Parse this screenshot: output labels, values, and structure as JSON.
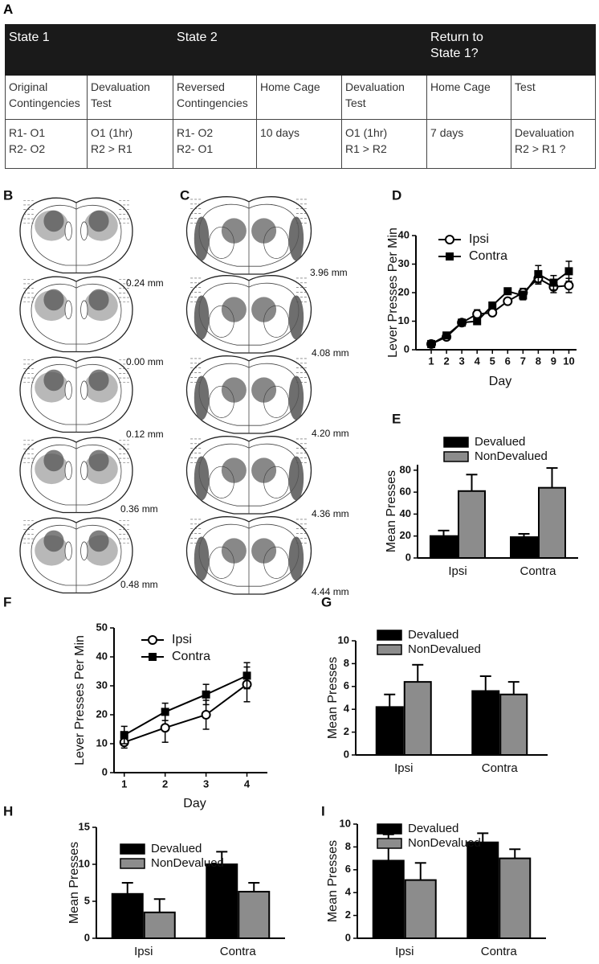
{
  "table": {
    "label": "A",
    "header": [
      "State 1",
      "State 2",
      "Return to State 1?"
    ],
    "rows": [
      [
        "Original Contingencies",
        "Devaluation Test",
        "Reversed Contingencies",
        "Home Cage",
        "Devaluation Test",
        "Home Cage",
        "Test"
      ],
      [
        [
          "R1- O1",
          "R2- O2"
        ],
        [
          "O1 (1hr)",
          "R2 > R1"
        ],
        [
          "R1- O2",
          "R2- O1"
        ],
        [
          "10 days"
        ],
        [
          "O1 (1hr)",
          "R1 > R2"
        ],
        [
          "7 days"
        ],
        [
          "Devaluation",
          "R2 > R1 ?"
        ]
      ]
    ]
  },
  "atlas": {
    "B": {
      "label": "B",
      "sections": [
        "0.24 mm",
        "0.00 mm",
        "0.12 mm",
        "0.36 mm",
        "0.48 mm"
      ]
    },
    "C": {
      "label": "C",
      "sections": [
        "3.96 mm",
        "4.08 mm",
        "4.20 mm",
        "4.36 mm",
        "4.44 mm"
      ]
    }
  },
  "chart_data": [
    {
      "type": "line",
      "label": "D",
      "ylabel": "Lever Presses Per Min",
      "xlabel": "Day",
      "x": [
        1,
        2,
        3,
        4,
        5,
        6,
        7,
        8,
        9,
        10
      ],
      "xlim": [
        0,
        10.5
      ],
      "xticks": [
        1,
        2,
        3,
        4,
        5,
        6,
        7,
        8,
        9,
        10
      ],
      "ylim": [
        0,
        40
      ],
      "yticks": [
        0,
        10,
        20,
        30,
        40
      ],
      "series": [
        {
          "name": "Ipsi",
          "color": "#000000",
          "marker": "circle",
          "values": [
            2,
            4.5,
            9.5,
            12.5,
            13,
            17,
            20,
            25,
            22,
            22.5
          ],
          "errors": [
            0.5,
            0.5,
            0.7,
            1.5,
            1,
            1,
            1.5,
            2,
            2,
            2.5
          ]
        },
        {
          "name": "Contra",
          "color": "#000000",
          "marker": "square",
          "values": [
            2,
            5,
            9.5,
            10,
            15.5,
            20.5,
            19,
            26.5,
            23.5,
            27.5
          ],
          "errors": [
            0.5,
            0.5,
            0.7,
            1,
            1,
            1,
            1.5,
            3,
            2.5,
            3.5
          ]
        }
      ]
    },
    {
      "type": "bar",
      "label": "E",
      "ylabel": "Mean Presses",
      "categories": [
        "Ipsi",
        "Contra"
      ],
      "ylim": [
        0,
        85
      ],
      "yticks": [
        0,
        20,
        40,
        60,
        80
      ],
      "series": [
        {
          "name": "Devalued",
          "color": "#000000",
          "values": [
            20,
            19
          ],
          "errors": [
            5,
            3
          ]
        },
        {
          "name": "NonDevalued",
          "color": "#8c8c8c",
          "values": [
            61,
            64
          ],
          "errors": [
            15,
            18
          ]
        }
      ]
    },
    {
      "type": "line",
      "label": "F",
      "ylabel": "Lever Presses Per Min",
      "xlabel": "Day",
      "x": [
        1,
        2,
        3,
        4
      ],
      "xlim": [
        0.75,
        4.5
      ],
      "xticks": [
        1,
        2,
        3,
        4
      ],
      "ylim": [
        0,
        50
      ],
      "yticks": [
        0,
        10,
        20,
        30,
        40,
        50
      ],
      "series": [
        {
          "name": "Ipsi",
          "color": "#000000",
          "marker": "circle",
          "values": [
            10.5,
            15.5,
            20,
            30.5
          ],
          "errors": [
            2,
            5,
            5,
            6
          ]
        },
        {
          "name": "Contra",
          "color": "#000000",
          "marker": "square",
          "values": [
            13,
            21,
            27,
            33.5
          ],
          "errors": [
            3,
            3,
            3.5,
            4.5
          ]
        }
      ]
    },
    {
      "type": "bar",
      "label": "G",
      "ylabel": "Mean Presses",
      "categories": [
        "Ipsi",
        "Contra"
      ],
      "ylim": [
        0,
        10
      ],
      "yticks": [
        0,
        2,
        4,
        6,
        8,
        10
      ],
      "series": [
        {
          "name": "Devalued",
          "color": "#000000",
          "values": [
            4.2,
            5.6
          ],
          "errors": [
            1.1,
            1.3
          ]
        },
        {
          "name": "NonDevalued",
          "color": "#8c8c8c",
          "values": [
            6.4,
            5.3
          ],
          "errors": [
            1.5,
            1.1
          ]
        }
      ]
    },
    {
      "type": "bar",
      "label": "H",
      "ylabel": "Mean Presses",
      "categories": [
        "Ipsi",
        "Contra"
      ],
      "ylim": [
        0,
        15
      ],
      "yticks": [
        0,
        5,
        10,
        15
      ],
      "series": [
        {
          "name": "Devalued",
          "color": "#000000",
          "values": [
            6,
            10
          ],
          "errors": [
            1.5,
            1.7
          ]
        },
        {
          "name": "NonDevalued",
          "color": "#8c8c8c",
          "values": [
            3.5,
            6.3
          ],
          "errors": [
            1.8,
            1.2
          ]
        }
      ]
    },
    {
      "type": "bar",
      "label": "I",
      "ylabel": "Mean Presses",
      "categories": [
        "Ipsi",
        "Contra"
      ],
      "ylim": [
        0,
        10
      ],
      "yticks": [
        0,
        2,
        4,
        6,
        8,
        10
      ],
      "series": [
        {
          "name": "Devalued",
          "color": "#000000",
          "values": [
            6.8,
            8.4
          ],
          "errors": [
            2.3,
            0.8
          ]
        },
        {
          "name": "NonDevalued",
          "color": "#8c8c8c",
          "values": [
            5.1,
            7
          ],
          "errors": [
            1.5,
            0.8
          ]
        }
      ]
    }
  ]
}
